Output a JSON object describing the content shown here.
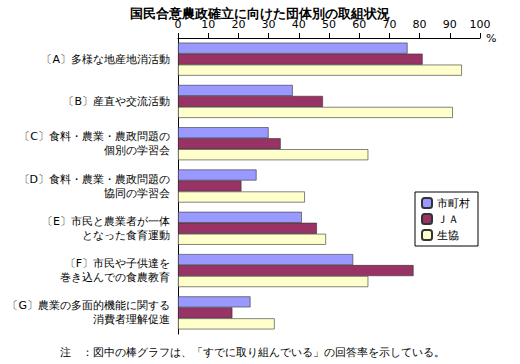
{
  "chart_data": {
    "type": "bar",
    "title": "国民合意農政確立に向けた団体別の取組状況",
    "orientation": "horizontal",
    "categories": [
      "〔A〕多様な地産地消活動",
      "〔B〕産直や交流活動",
      "〔C〕食料・農業・農政問題の\n個別の学習会",
      "〔D〕食料・農業・農政問題の\n協同の学習会",
      "〔E〕市民と農業者が一体\nとなった食育運動",
      "〔F〕市民や子供達を\n巻き込んでの食農教育",
      "〔G〕農業の多面的機能に関する\n消費者理解促進"
    ],
    "series": [
      {
        "name": "市町村",
        "color": "#9999ff",
        "values": [
          76,
          38,
          30,
          26,
          41,
          58,
          24
        ]
      },
      {
        "name": "ＪＡ",
        "color": "#993366",
        "values": [
          81,
          48,
          34,
          21,
          46,
          78,
          18
        ]
      },
      {
        "name": "生協",
        "color": "#ffffcc",
        "values": [
          94,
          91,
          63,
          42,
          49,
          63,
          32
        ]
      }
    ],
    "xlabel": "%",
    "xlim": [
      0,
      100
    ],
    "xticks": [
      0,
      10,
      20,
      30,
      40,
      50,
      60,
      70,
      80,
      90,
      100
    ],
    "grid": false,
    "legend": "right",
    "annotations": [
      "注　：図中の棒グラフは、「すでに取り組んでいる」の回答率を示している。"
    ]
  }
}
